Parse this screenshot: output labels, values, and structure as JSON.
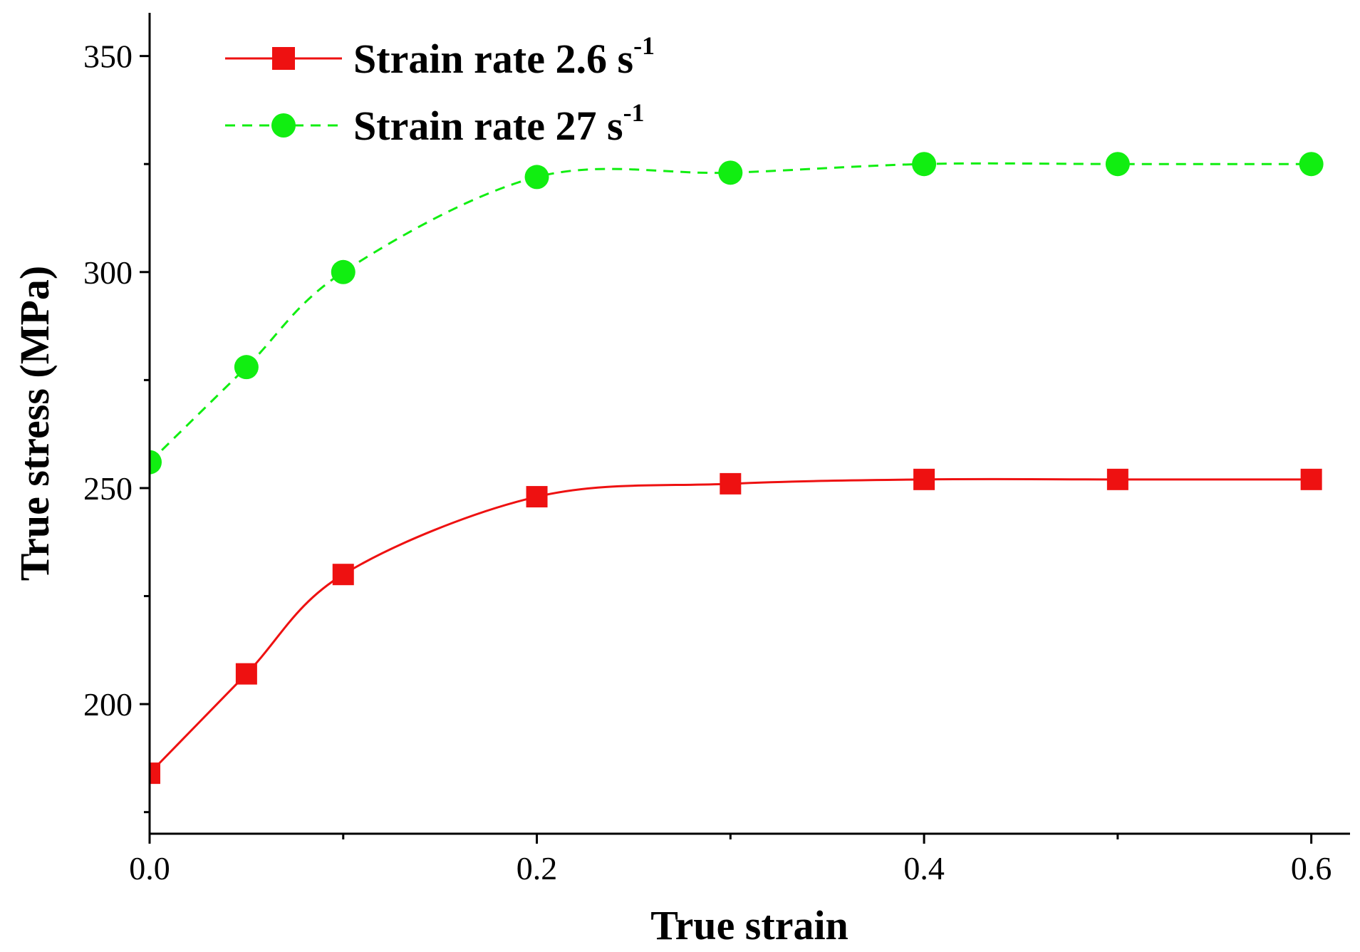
{
  "chart_data": {
    "type": "line",
    "title": "",
    "xlabel": "True strain",
    "ylabel": "True stress (MPa)",
    "xlim": [
      0.0,
      0.62
    ],
    "ylim": [
      170,
      360
    ],
    "x_ticks": [
      0.0,
      0.2,
      0.4,
      0.6
    ],
    "x_tick_labels": [
      "0.0",
      "0.2",
      "0.4",
      "0.6"
    ],
    "x_minor_ticks": [
      0.1,
      0.3,
      0.5
    ],
    "y_ticks": [
      200,
      250,
      300,
      350
    ],
    "y_tick_labels": [
      "200",
      "250",
      "300",
      "350"
    ],
    "y_minor_ticks": [
      175,
      225,
      275,
      325
    ],
    "grid": false,
    "legend_position": "top-left",
    "series": [
      {
        "name": "Strain rate 2.6 s",
        "superscript": "-1",
        "color": "#ee1111",
        "marker": "square",
        "line_style": "solid",
        "x": [
          0.0,
          0.05,
          0.1,
          0.2,
          0.3,
          0.4,
          0.5,
          0.6
        ],
        "values": [
          184,
          207,
          230,
          248,
          251,
          252,
          252,
          252
        ]
      },
      {
        "name": "Strain rate 27 s",
        "superscript": "-1",
        "color": "#11ee11",
        "marker": "circle",
        "line_style": "dashed",
        "x": [
          0.0,
          0.05,
          0.1,
          0.2,
          0.3,
          0.4,
          0.5,
          0.6
        ],
        "values": [
          256,
          278,
          300,
          322,
          323,
          325,
          325,
          325
        ]
      }
    ]
  }
}
